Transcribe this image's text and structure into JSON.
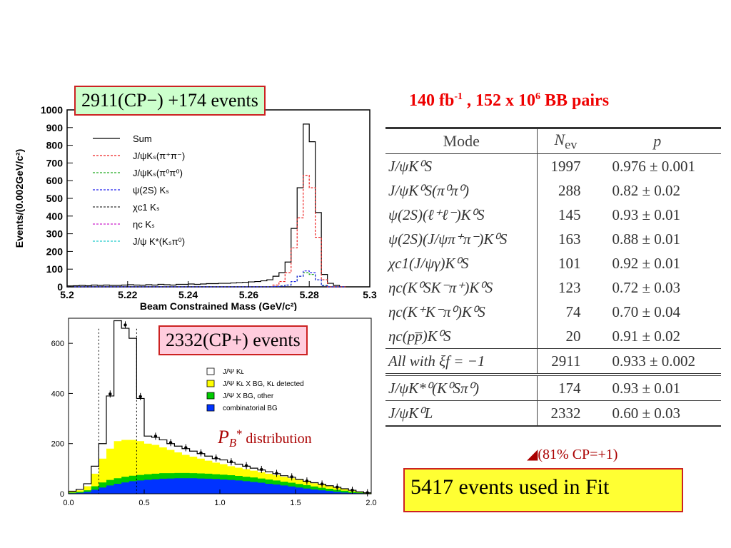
{
  "labels": {
    "top_events": "2911(CP−) +174 events",
    "bottom_events": "2332(CP+) events",
    "luminosity_main": "140 fb",
    "luminosity_exp": "-1",
    "luminosity_mid": " , 152 x 10",
    "luminosity_exp2": "6",
    "luminosity_end": " BB pairs",
    "fit_events": "5417 events used in Fit",
    "cp_fraction": "(81% CP=+1)",
    "pb_symbol": "P",
    "pb_sub": "B",
    "pb_sup": "*",
    "pb_text": " distribution"
  },
  "table": {
    "headers": {
      "mode": "Mode",
      "nev": "N",
      "nev_sub": "ev",
      "p": "p"
    },
    "rows": [
      {
        "mode": "J/ψK⁰S",
        "nev": "1997",
        "p": "0.976 ± 0.001"
      },
      {
        "mode": "J/ψK⁰S(π⁰π⁰)",
        "nev": "288",
        "p": "0.82  ± 0.02"
      },
      {
        "mode": "ψ(2S)(ℓ⁺ℓ⁻)K⁰S",
        "nev": "145",
        "p": "0.93  ± 0.01"
      },
      {
        "mode": "ψ(2S)(J/ψπ⁺π⁻)K⁰S",
        "nev": "163",
        "p": "0.88  ± 0.01"
      },
      {
        "mode": "χc1(J/ψγ)K⁰S",
        "nev": "101",
        "p": "0.92  ± 0.01"
      },
      {
        "mode": "ηc(K⁰SK⁻π⁺)K⁰S",
        "nev": "123",
        "p": "0.72  ± 0.03"
      },
      {
        "mode": "ηc(K⁺K⁻π⁰)K⁰S",
        "nev": "74",
        "p": "0.70  ± 0.04"
      },
      {
        "mode": "ηc(pp̅)K⁰S",
        "nev": "20",
        "p": "0.91  ± 0.02"
      },
      {
        "mode": "All with ξf = −1",
        "nev": "2911",
        "p": "0.933 ± 0.002"
      },
      {
        "mode": "J/ψK*⁰(K⁰Sπ⁰)",
        "nev": "174",
        "p": "0.93  ± 0.01"
      },
      {
        "mode": "J/ψK⁰L",
        "nev": "2332",
        "p": "0.60  ± 0.03"
      }
    ]
  },
  "chart_data": [
    {
      "type": "bar",
      "xlabel": "Beam Constrained Mass (GeV/c²)",
      "ylabel": "Events/(0.002GeV/c²)",
      "xlim": [
        5.2,
        5.3
      ],
      "ylim": [
        0,
        1000
      ],
      "x_ticks": [
        "5.2",
        "5.22",
        "5.24",
        "5.26",
        "5.28",
        "5.3"
      ],
      "y_ticks": [
        "0",
        "100",
        "200",
        "300",
        "400",
        "500",
        "600",
        "700",
        "800",
        "900",
        "1000"
      ],
      "legend": [
        "Sum",
        "J/ψKₛ(π⁺π⁻)",
        "J/ψKₛ(π⁰π⁰)",
        "ψ(2S) Kₛ",
        "χc1 Kₛ",
        "ηc Kₛ",
        "J/ψ K*(Kₛπ⁰)"
      ],
      "legend_colors": [
        "#000000",
        "#ee2222",
        "#22aa22",
        "#2222ee",
        "#333333",
        "#cc22cc",
        "#22cccc"
      ],
      "x": [
        5.2,
        5.202,
        5.204,
        5.206,
        5.208,
        5.21,
        5.212,
        5.214,
        5.216,
        5.218,
        5.22,
        5.222,
        5.224,
        5.226,
        5.228,
        5.23,
        5.232,
        5.234,
        5.236,
        5.238,
        5.24,
        5.242,
        5.244,
        5.246,
        5.248,
        5.25,
        5.252,
        5.254,
        5.256,
        5.258,
        5.26,
        5.262,
        5.264,
        5.266,
        5.268,
        5.27,
        5.272,
        5.274,
        5.276,
        5.278,
        5.28,
        5.282,
        5.284,
        5.286,
        5.288,
        5.29
      ],
      "series": [
        {
          "name": "Sum",
          "values": [
            5,
            6,
            8,
            6,
            10,
            8,
            10,
            8,
            8,
            10,
            12,
            10,
            9,
            12,
            10,
            14,
            12,
            10,
            14,
            14,
            16,
            14,
            16,
            18,
            18,
            20,
            20,
            22,
            24,
            26,
            28,
            30,
            34,
            40,
            60,
            80,
            140,
            330,
            560,
            920,
            820,
            420,
            70,
            20,
            8,
            0
          ]
        },
        {
          "name": "J/ψKₛ(π⁺π⁻)",
          "values": [
            0,
            0,
            0,
            0,
            0,
            0,
            0,
            0,
            0,
            0,
            0,
            0,
            0,
            0,
            0,
            0,
            0,
            0,
            0,
            0,
            0,
            0,
            0,
            0,
            0,
            0,
            0,
            0,
            0,
            0,
            0,
            0,
            0,
            0,
            10,
            30,
            80,
            220,
            390,
            630,
            560,
            280,
            40,
            0,
            0,
            0
          ]
        },
        {
          "name": "J/ψKₛ(π⁰π⁰)",
          "values": [
            0,
            0,
            0,
            0,
            0,
            0,
            0,
            0,
            0,
            0,
            0,
            0,
            0,
            0,
            0,
            0,
            0,
            0,
            0,
            0,
            0,
            0,
            0,
            0,
            0,
            0,
            0,
            0,
            0,
            0,
            0,
            0,
            0,
            0,
            2,
            5,
            10,
            30,
            60,
            80,
            70,
            40,
            8,
            0,
            0,
            0
          ]
        },
        {
          "name": "ψ(2S) Kₛ",
          "values": [
            0,
            0,
            0,
            0,
            0,
            0,
            0,
            0,
            0,
            0,
            0,
            0,
            0,
            0,
            0,
            0,
            0,
            0,
            0,
            0,
            0,
            0,
            0,
            0,
            0,
            0,
            0,
            0,
            0,
            0,
            0,
            0,
            0,
            0,
            2,
            4,
            10,
            30,
            60,
            90,
            80,
            40,
            6,
            0,
            0,
            0
          ]
        }
      ]
    },
    {
      "type": "bar",
      "xlabel": "",
      "ylabel": "",
      "xlim": [
        0.0,
        2.0
      ],
      "ylim": [
        0,
        700
      ],
      "x_ticks": [
        "0.0",
        "0.5",
        "1.0",
        "1.5",
        "2.0"
      ],
      "y_ticks": [
        "0",
        "200",
        "400",
        "600"
      ],
      "legend": [
        "J/Ψ Kʟ",
        "J/Ψ Kʟ X BG, Kʟ detected",
        "J/Ψ X BG, other",
        "combinatorial BG"
      ],
      "legend_colors": [
        "#ffffff",
        "#ffff00",
        "#00cc00",
        "#0033ff"
      ],
      "x": [
        0.0,
        0.05,
        0.1,
        0.15,
        0.2,
        0.25,
        0.3,
        0.35,
        0.4,
        0.45,
        0.5,
        0.55,
        0.6,
        0.65,
        0.7,
        0.75,
        0.8,
        0.85,
        0.9,
        0.95,
        1.0,
        1.05,
        1.1,
        1.15,
        1.2,
        1.25,
        1.3,
        1.35,
        1.4,
        1.45,
        1.5,
        1.55,
        1.6,
        1.65,
        1.7,
        1.75,
        1.8,
        1.85,
        1.9,
        1.95
      ],
      "series": [
        {
          "name": "J/Ψ Kʟ",
          "values": [
            10,
            18,
            40,
            110,
            200,
            390,
            690,
            660,
            620,
            380,
            230,
            225,
            215,
            200,
            190,
            180,
            170,
            160,
            150,
            140,
            135,
            125,
            118,
            110,
            102,
            95,
            88,
            80,
            72,
            66,
            58,
            50,
            44,
            38,
            32,
            26,
            20,
            14,
            8,
            4
          ]
        },
        {
          "name": "J/Ψ Kʟ X BG, Kʟ detected",
          "values": [
            8,
            14,
            30,
            80,
            140,
            180,
            210,
            215,
            215,
            210,
            200,
            195,
            185,
            175,
            165,
            155,
            148,
            140,
            132,
            124,
            118,
            110,
            104,
            98,
            92,
            86,
            80,
            74,
            68,
            62,
            55,
            48,
            42,
            36,
            30,
            24,
            18,
            12,
            7,
            3
          ]
        },
        {
          "name": "J/Ψ X BG, other",
          "values": [
            5,
            8,
            14,
            30,
            45,
            55,
            62,
            68,
            72,
            75,
            78,
            80,
            82,
            82,
            83,
            83,
            82,
            81,
            80,
            78,
            76,
            74,
            71,
            68,
            65,
            61,
            57,
            53,
            48,
            44,
            39,
            34,
            29,
            24,
            20,
            16,
            12,
            8,
            5,
            2
          ]
        },
        {
          "name": "combinatorial BG",
          "values": [
            2,
            4,
            8,
            16,
            25,
            33,
            40,
            45,
            50,
            53,
            56,
            58,
            60,
            61,
            62,
            62,
            62,
            61,
            60,
            59,
            57,
            55,
            53,
            50,
            47,
            44,
            40,
            37,
            33,
            29,
            25,
            21,
            17,
            14,
            11,
            8,
            5,
            3,
            2,
            1
          ]
        }
      ]
    }
  ]
}
